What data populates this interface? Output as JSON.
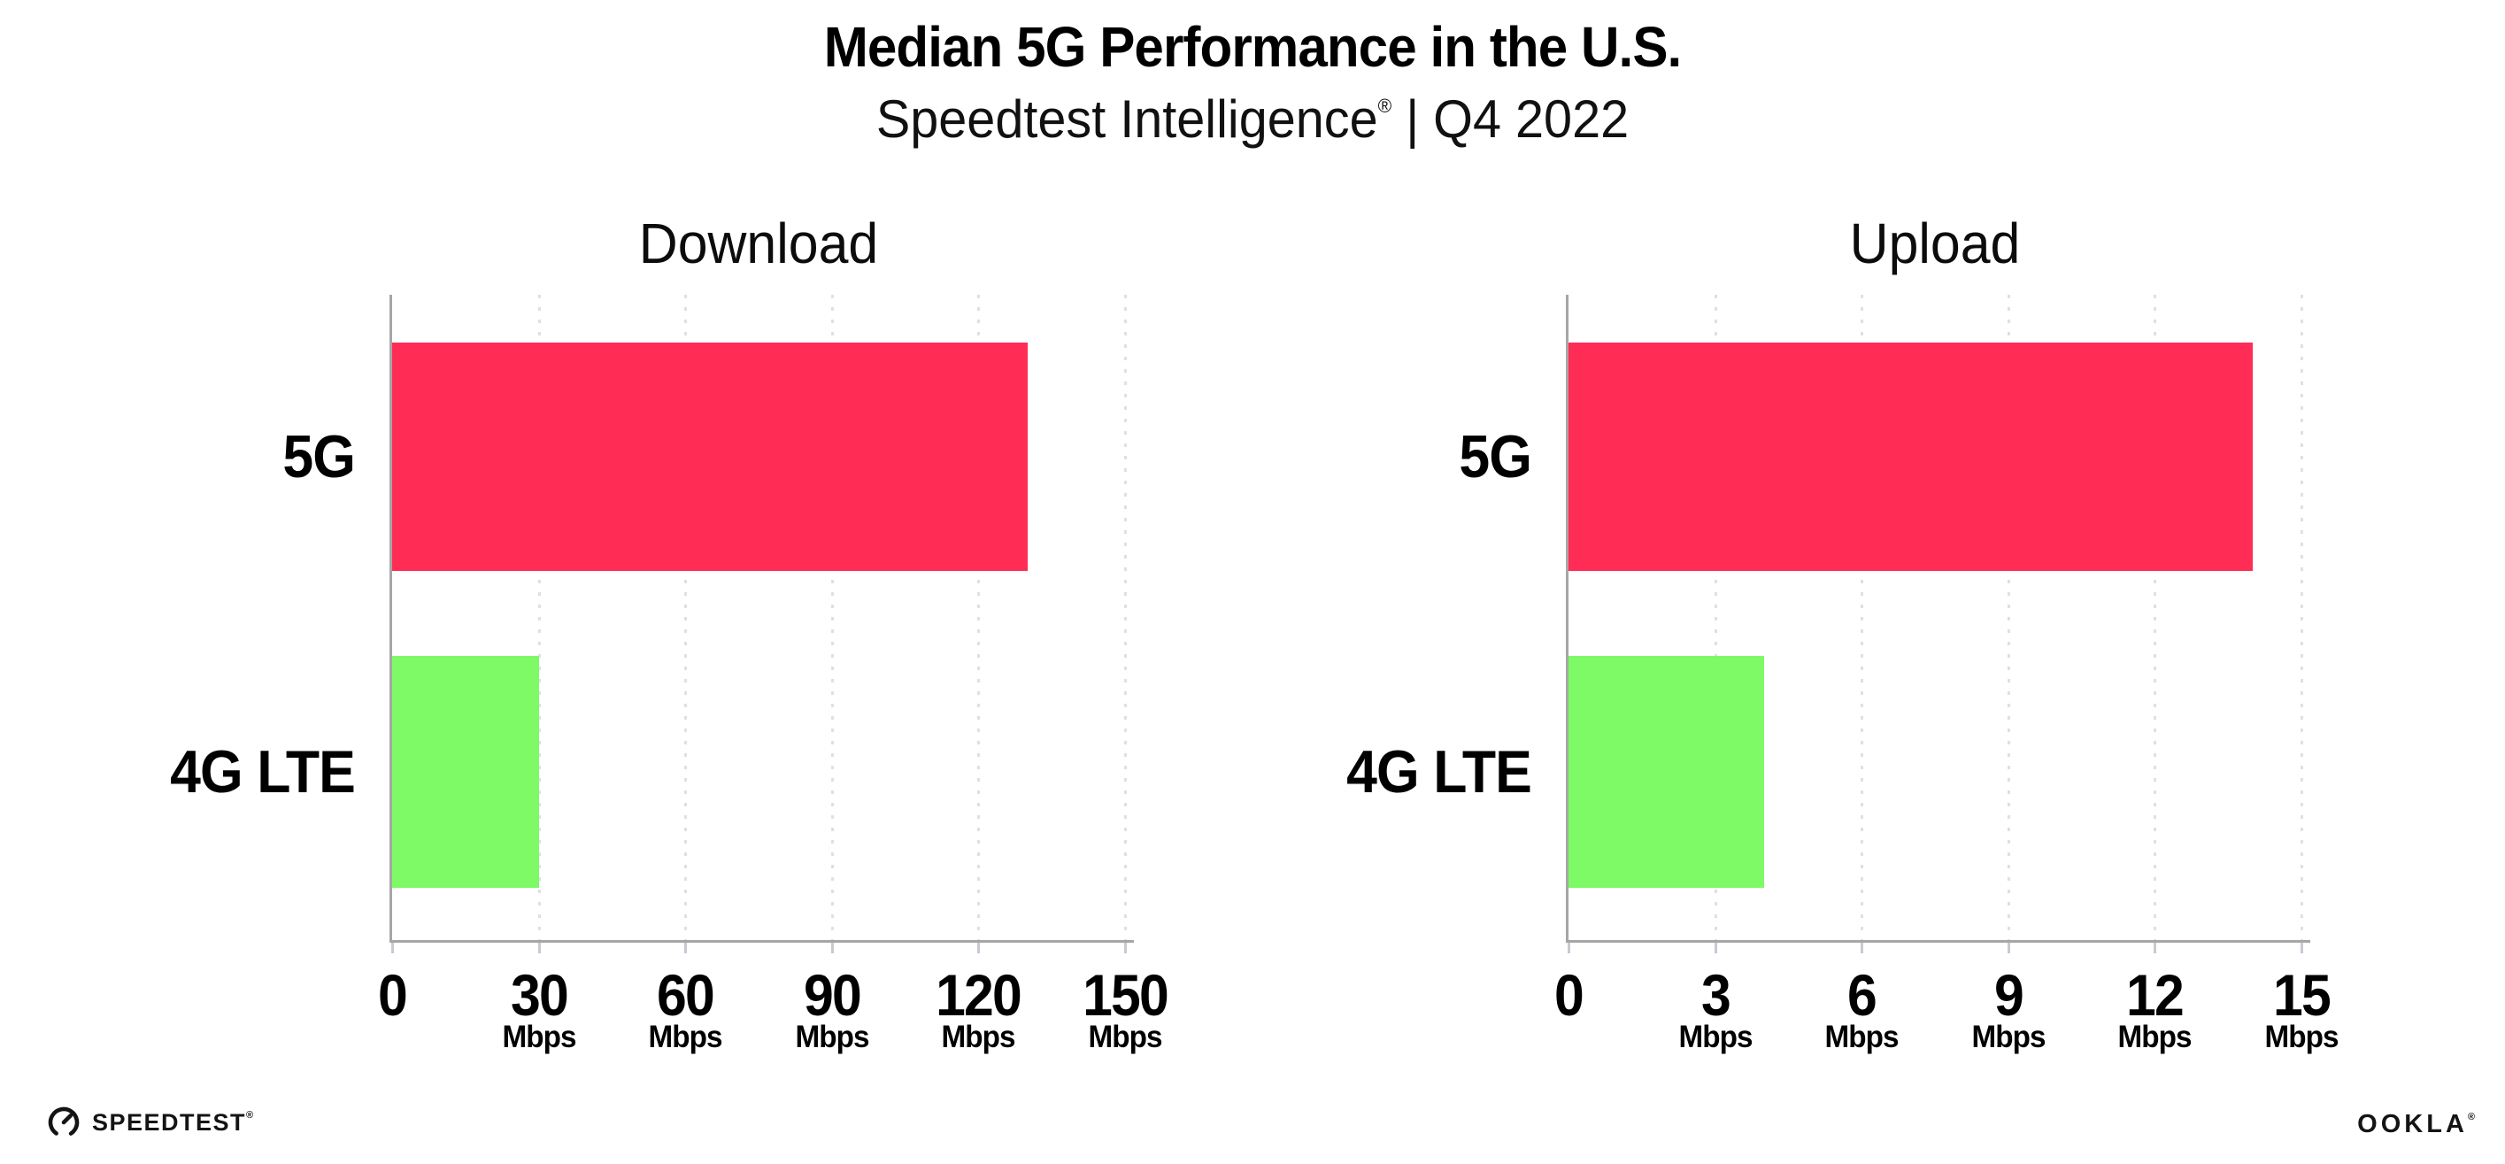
{
  "header": {
    "title": "Median 5G Performance in the U.S.",
    "subtitle_brand": "Speedtest Intelligence",
    "subtitle_registered": "®",
    "subtitle_separator": " | ",
    "subtitle_period": "Q4 2022"
  },
  "chart_data": [
    {
      "type": "bar",
      "orientation": "horizontal",
      "title": "Download",
      "categories": [
        "5G",
        "4G LTE"
      ],
      "values": [
        130,
        30
      ],
      "unit": "Mbps",
      "xlim": [
        0,
        150
      ],
      "xticks": [
        0,
        30,
        60,
        90,
        120,
        150
      ],
      "bar_colors": [
        "#FF2D55",
        "#7EFA66"
      ],
      "grid": "dotted vertical gridlines at each tick",
      "legend_position": "none"
    },
    {
      "type": "bar",
      "orientation": "horizontal",
      "title": "Upload",
      "categories": [
        "5G",
        "4G LTE"
      ],
      "values": [
        14,
        4
      ],
      "unit": "Mbps",
      "xlim": [
        0,
        15
      ],
      "xticks": [
        0,
        3,
        6,
        9,
        12,
        15
      ],
      "bar_colors": [
        "#FF2D55",
        "#7EFA66"
      ],
      "grid": "dotted vertical gridlines at each tick",
      "legend_position": "none"
    }
  ],
  "footer": {
    "speedtest_wordmark": "SPEEDTEST",
    "speedtest_mark": "®",
    "ookla_wordmark": "OOKLA",
    "ookla_mark": "®"
  },
  "colors": {
    "bar_5g": "#FF2D55",
    "bar_4g_lte": "#7EFA66",
    "axis_line": "#A6A6A6",
    "gridline_dots": "#DFDFE9",
    "text": "#000000",
    "background": "#FFFFFF"
  }
}
